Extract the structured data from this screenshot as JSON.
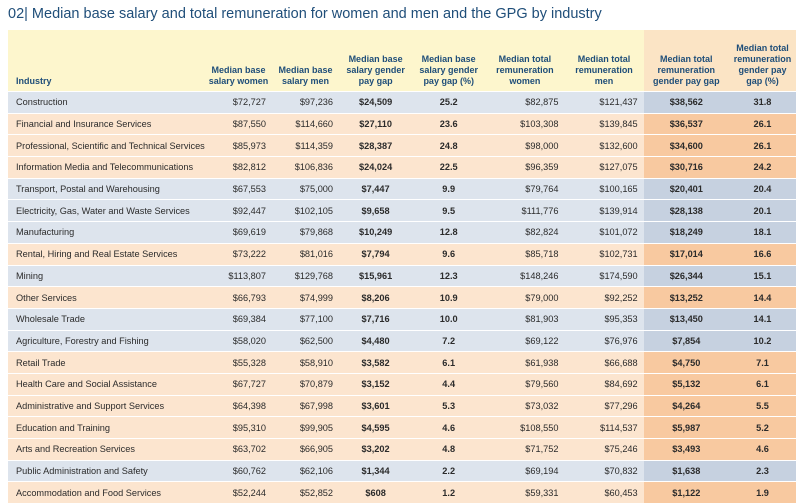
{
  "title": "02| Median base salary and total remuneration for women and men and the GPG by industry",
  "headers": [
    "Industry",
    "Median base salary women",
    "Median base salary men",
    "Median base salary gender pay gap",
    "Median base salary gender pay gap (%)",
    "Median total remuneration women",
    "Median total remuneration men",
    "Median total remuneration gender pay gap",
    "Median total remuneration gender pay gap (%)"
  ],
  "rows": [
    {
      "industry": "Construction",
      "bw": "$72,727",
      "bm": "$97,236",
      "bgap": "$24,509",
      "bpct": "25.2",
      "tw": "$82,875",
      "tm": "$121,437",
      "tgap": "$38,562",
      "tpct": "31.8"
    },
    {
      "industry": "Financial and Insurance Services",
      "bw": "$87,550",
      "bm": "$114,660",
      "bgap": "$27,110",
      "bpct": "23.6",
      "tw": "$103,308",
      "tm": "$139,845",
      "tgap": "$36,537",
      "tpct": "26.1"
    },
    {
      "industry": "Professional, Scientific and Technical Services",
      "bw": "$85,973",
      "bm": "$114,359",
      "bgap": "$28,387",
      "bpct": "24.8",
      "tw": "$98,000",
      "tm": "$132,600",
      "tgap": "$34,600",
      "tpct": "26.1"
    },
    {
      "industry": "Information Media and Telecommunications",
      "bw": "$82,812",
      "bm": "$106,836",
      "bgap": "$24,024",
      "bpct": "22.5",
      "tw": "$96,359",
      "tm": "$127,075",
      "tgap": "$30,716",
      "tpct": "24.2"
    },
    {
      "industry": "Transport, Postal and Warehousing",
      "bw": "$67,553",
      "bm": "$75,000",
      "bgap": "$7,447",
      "bpct": "9.9",
      "tw": "$79,764",
      "tm": "$100,165",
      "tgap": "$20,401",
      "tpct": "20.4"
    },
    {
      "industry": "Electricity, Gas, Water and Waste Services",
      "bw": "$92,447",
      "bm": "$102,105",
      "bgap": "$9,658",
      "bpct": "9.5",
      "tw": "$111,776",
      "tm": "$139,914",
      "tgap": "$28,138",
      "tpct": "20.1"
    },
    {
      "industry": "Manufacturing",
      "bw": "$69,619",
      "bm": "$79,868",
      "bgap": "$10,249",
      "bpct": "12.8",
      "tw": "$82,824",
      "tm": "$101,072",
      "tgap": "$18,249",
      "tpct": "18.1"
    },
    {
      "industry": "Rental, Hiring and Real Estate Services",
      "bw": "$73,222",
      "bm": "$81,016",
      "bgap": "$7,794",
      "bpct": "9.6",
      "tw": "$85,718",
      "tm": "$102,731",
      "tgap": "$17,014",
      "tpct": "16.6"
    },
    {
      "industry": "Mining",
      "bw": "$113,807",
      "bm": "$129,768",
      "bgap": "$15,961",
      "bpct": "12.3",
      "tw": "$148,246",
      "tm": "$174,590",
      "tgap": "$26,344",
      "tpct": "15.1"
    },
    {
      "industry": "Other Services",
      "bw": "$66,793",
      "bm": "$74,999",
      "bgap": "$8,206",
      "bpct": "10.9",
      "tw": "$79,000",
      "tm": "$92,252",
      "tgap": "$13,252",
      "tpct": "14.4"
    },
    {
      "industry": "Wholesale Trade",
      "bw": "$69,384",
      "bm": "$77,100",
      "bgap": "$7,716",
      "bpct": "10.0",
      "tw": "$81,903",
      "tm": "$95,353",
      "tgap": "$13,450",
      "tpct": "14.1"
    },
    {
      "industry": "Agriculture, Forestry and Fishing",
      "bw": "$58,020",
      "bm": "$62,500",
      "bgap": "$4,480",
      "bpct": "7.2",
      "tw": "$69,122",
      "tm": "$76,976",
      "tgap": "$7,854",
      "tpct": "10.2"
    },
    {
      "industry": "Retail Trade",
      "bw": "$55,328",
      "bm": "$58,910",
      "bgap": "$3,582",
      "bpct": "6.1",
      "tw": "$61,938",
      "tm": "$66,688",
      "tgap": "$4,750",
      "tpct": "7.1"
    },
    {
      "industry": "Health Care and Social Assistance",
      "bw": "$67,727",
      "bm": "$70,879",
      "bgap": "$3,152",
      "bpct": "4.4",
      "tw": "$79,560",
      "tm": "$84,692",
      "tgap": "$5,132",
      "tpct": "6.1"
    },
    {
      "industry": "Administrative and Support Services",
      "bw": "$64,398",
      "bm": "$67,998",
      "bgap": "$3,601",
      "bpct": "5.3",
      "tw": "$73,032",
      "tm": "$77,296",
      "tgap": "$4,264",
      "tpct": "5.5"
    },
    {
      "industry": "Education and Training",
      "bw": "$95,310",
      "bm": "$99,905",
      "bgap": "$4,595",
      "bpct": "4.6",
      "tw": "$108,550",
      "tm": "$114,537",
      "tgap": "$5,987",
      "tpct": "5.2"
    },
    {
      "industry": "Arts and Recreation Services",
      "bw": "$63,702",
      "bm": "$66,905",
      "bgap": "$3,202",
      "bpct": "4.8",
      "tw": "$71,752",
      "tm": "$75,246",
      "tgap": "$3,493",
      "tpct": "4.6"
    },
    {
      "industry": "Public Administration and Safety",
      "bw": "$60,762",
      "bm": "$62,106",
      "bgap": "$1,344",
      "bpct": "2.2",
      "tw": "$69,194",
      "tm": "$70,832",
      "tgap": "$1,638",
      "tpct": "2.3"
    },
    {
      "industry": "Accommodation and Food Services",
      "bw": "$52,244",
      "bm": "$52,852",
      "bgap": "$608",
      "bpct": "1.2",
      "tw": "$59,331",
      "tm": "$60,453",
      "tgap": "$1,122",
      "tpct": "1.9"
    }
  ],
  "colors": {
    "title": "#1f4e79",
    "header_bg": "#fdf6cd",
    "row_blue": "#dde4ed",
    "row_orange": "#fce5cf",
    "highlight_blue": "#c6d1e0",
    "highlight_orange": "#f8c9a0"
  }
}
